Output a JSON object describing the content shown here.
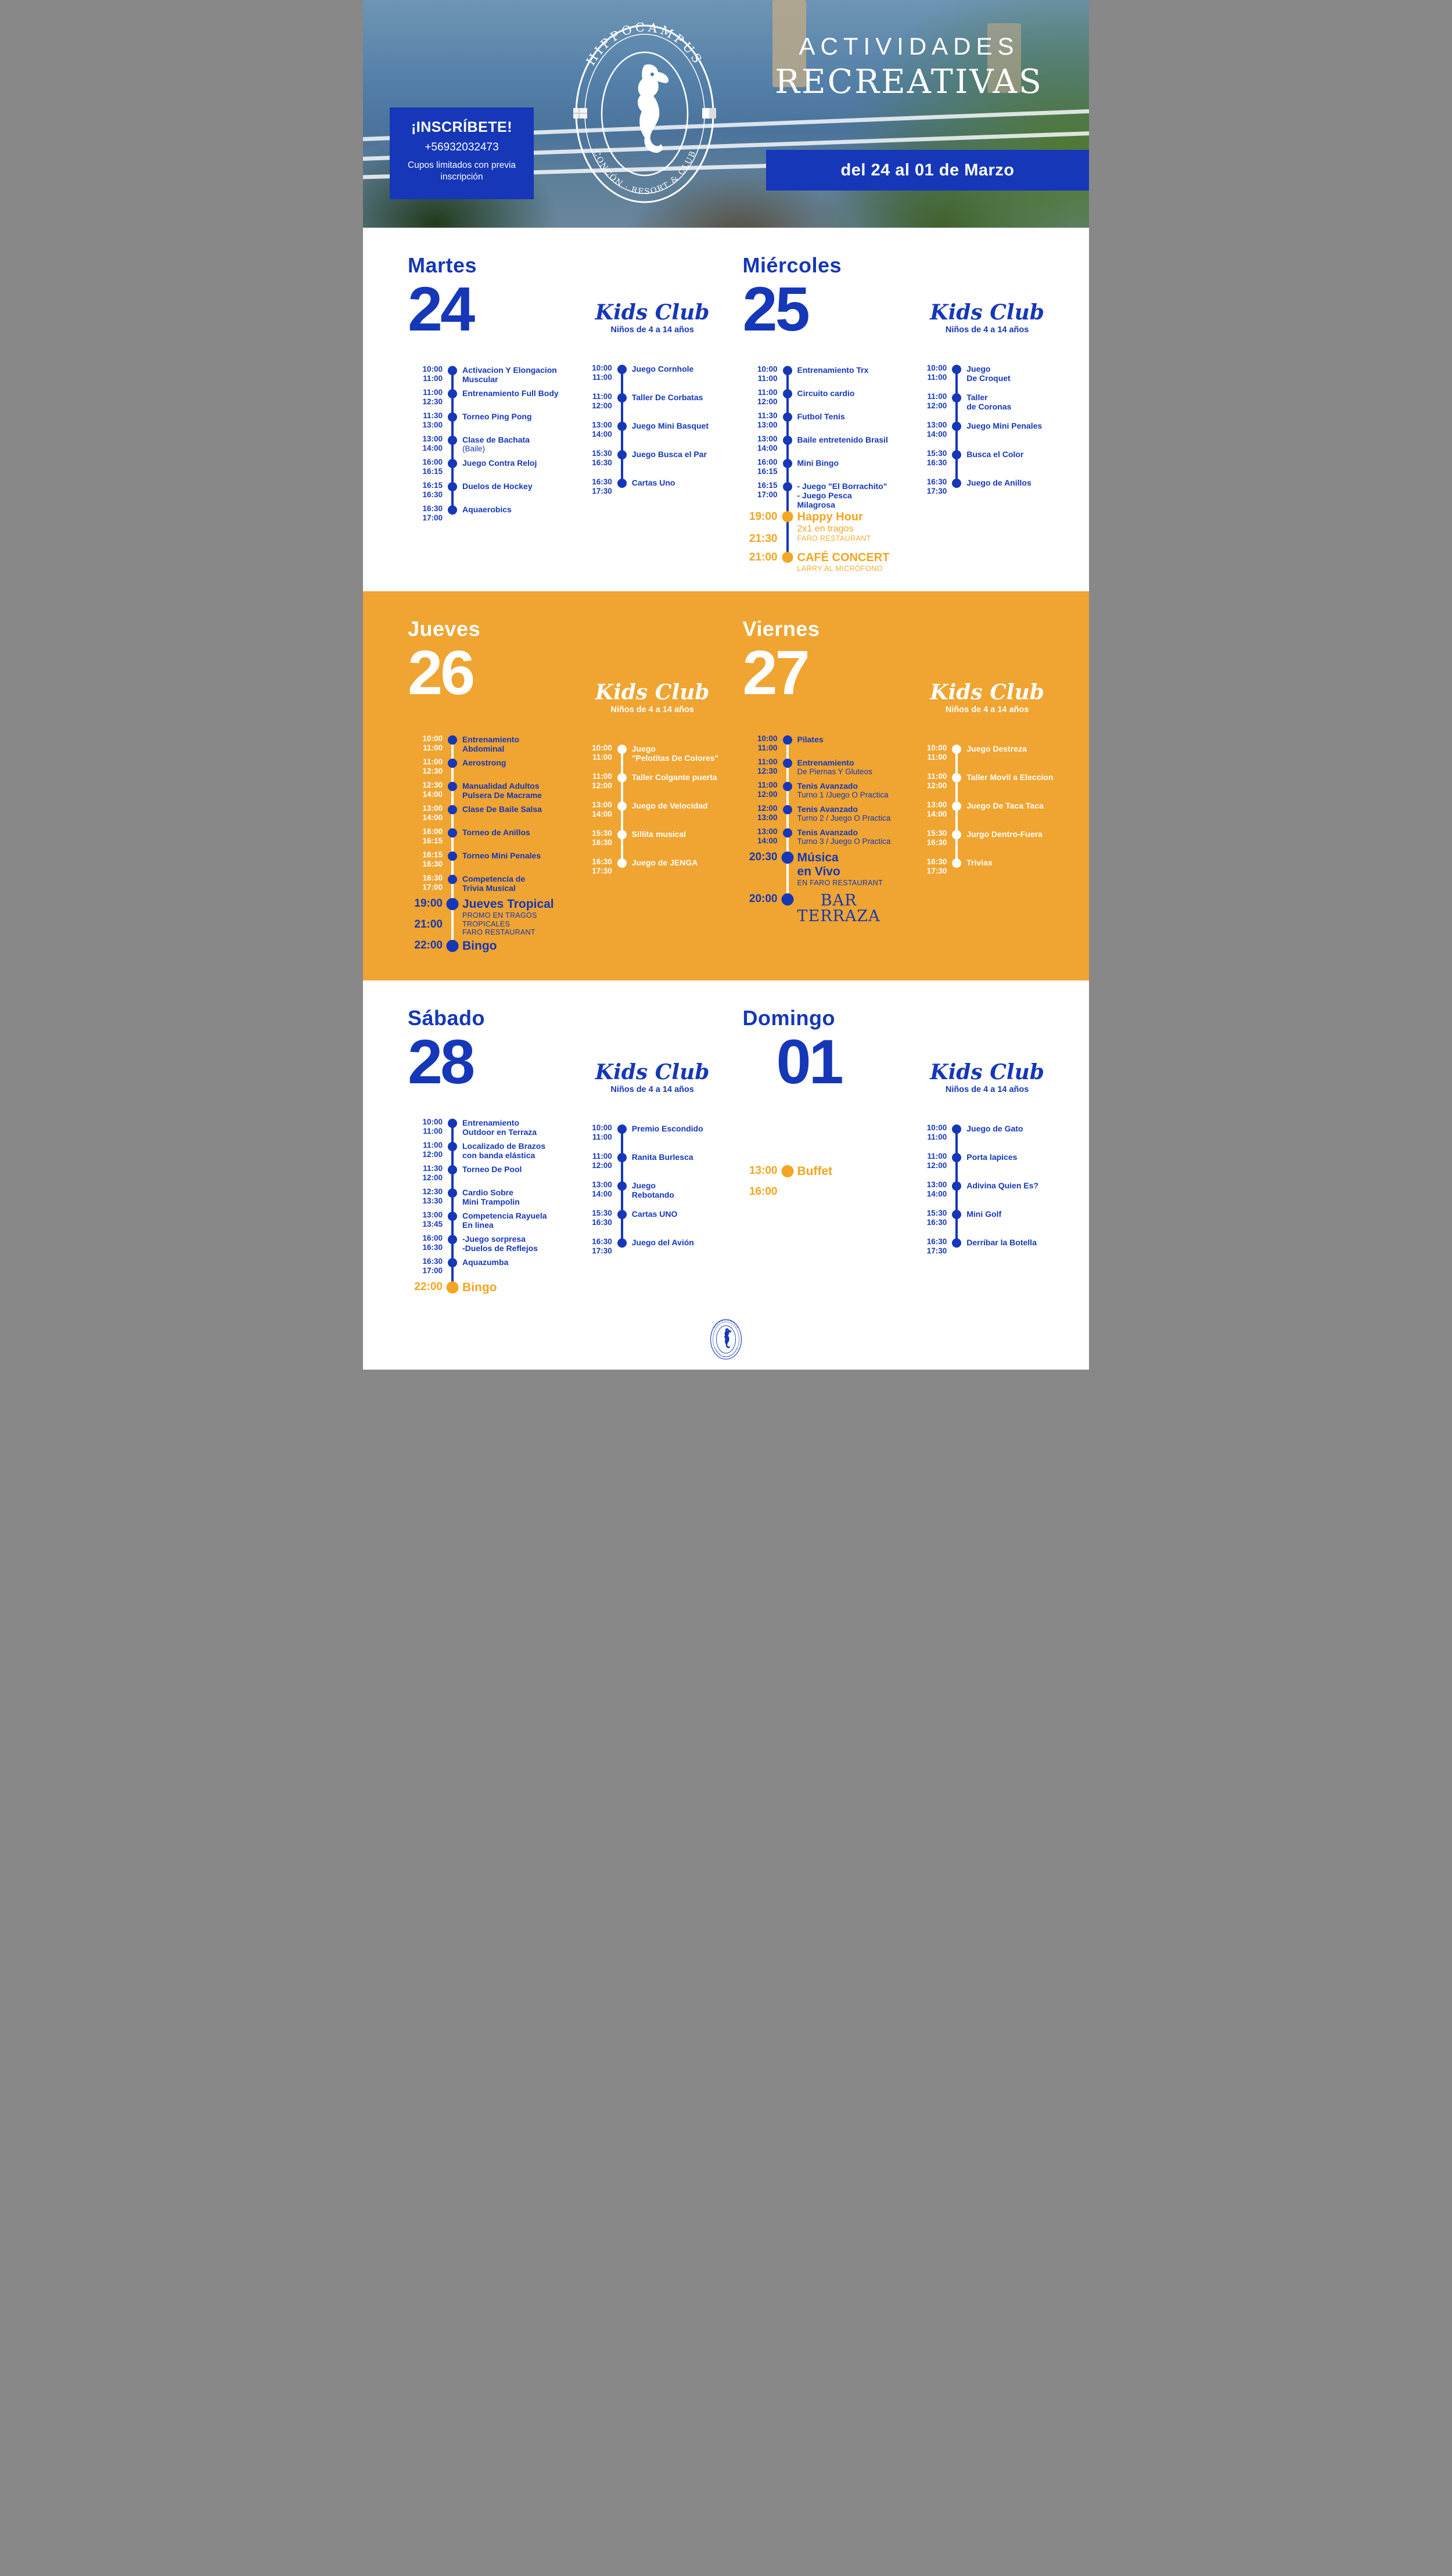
{
  "header": {
    "inscribete": {
      "title": "¡INSCRÍBETE!",
      "phone": "+56932032473",
      "note": "Cupos limitados con previa inscripción"
    },
    "logo": {
      "top": "HIPPOCAMPUS",
      "bottom": "CONCÓN · RESORT & CLUB"
    },
    "title_line1": "ACTIVIDADES",
    "title_line2": "RECREATIVAS",
    "date_range": "del 24 al 01 de Marzo"
  },
  "kids_club": {
    "title": "Kids Club",
    "subtitle": "Niños de 4 a 14 años"
  },
  "colors": {
    "blue": "#1537b8",
    "orange_bg": "#f0a431",
    "accent_orange": "#f4a521",
    "white": "#ffffff"
  },
  "days": [
    {
      "id": "martes",
      "name": "Martes",
      "number": "24",
      "band": 0,
      "main": [
        {
          "start": "10:00",
          "end": "11:00",
          "title": "Activacion Y Elongacion Muscular"
        },
        {
          "start": "11:00",
          "end": "12:30",
          "title": "Entrenamiento Full Body"
        },
        {
          "start": "11:30",
          "end": "13:00",
          "title": "Torneo Ping Pong"
        },
        {
          "start": "13:00",
          "end": "14:00",
          "title": "Clase de Bachata",
          "sub": "(Baile)"
        },
        {
          "start": "16:00",
          "end": "16:15",
          "title": "Juego Contra Reloj"
        },
        {
          "start": "16:15",
          "end": "16:30",
          "title": "Duelos de Hockey"
        },
        {
          "start": "16:30",
          "end": "17:00",
          "title": "Aquaerobics"
        }
      ],
      "kids": [
        {
          "start": "10:00",
          "end": "11:00",
          "title": "Juego Cornhole"
        },
        {
          "start": "11:00",
          "end": "12:00",
          "title": "Taller De Corbatas"
        },
        {
          "start": "13:00",
          "end": "14:00",
          "title": "Juego Mini Basquet"
        },
        {
          "start": "15:30",
          "end": "16:30",
          "title": "Juego Busca el Par"
        },
        {
          "start": "16:30",
          "end": "17:30",
          "title": "Cartas Uno"
        }
      ]
    },
    {
      "id": "miercoles",
      "name": "Miércoles",
      "number": "25",
      "band": 0,
      "main": [
        {
          "start": "10:00",
          "end": "11:00",
          "title": "Entrenamiento Trx"
        },
        {
          "start": "11:00",
          "end": "12:00",
          "title": "Circuito cardio"
        },
        {
          "start": "11:30",
          "end": "13:00",
          "title": "Futbol Tenis"
        },
        {
          "start": "13:00",
          "end": "14:00",
          "title": "Baile entretenido Brasil"
        },
        {
          "start": "16:00",
          "end": "16:15",
          "title": "Mini Bingo"
        },
        {
          "start": "16:15",
          "end": "17:00",
          "title": "- Juego \"El Borrachito\"\n- Juego Pesca\nMilagrosa"
        },
        {
          "start": "19:00",
          "end": "21:30",
          "title": "Happy Hour",
          "sub": "2x1 en tragos",
          "sub2": "FARO RESTAURANT",
          "style": "accent"
        },
        {
          "start": "21:00",
          "title": "CAFÉ CONCERT",
          "sub2": "LARRY AL MICRÓFONO",
          "style": "accent"
        }
      ],
      "kids": [
        {
          "start": "10:00",
          "end": "11:00",
          "title": "Juego\nDe Croquet"
        },
        {
          "start": "11:00",
          "end": "12:00",
          "title": "Taller\nde Coronas"
        },
        {
          "start": "13:00",
          "end": "14:00",
          "title": "Juego Mini Penales"
        },
        {
          "start": "15:30",
          "end": "16:30",
          "title": "Busca el Color"
        },
        {
          "start": "16:30",
          "end": "17:30",
          "title": "Juego de Anillos"
        }
      ]
    },
    {
      "id": "jueves",
      "name": "Jueves",
      "number": "26",
      "band": 1,
      "main": [
        {
          "start": "10:00",
          "end": "11:00",
          "title": "Entrenamiento\nAbdominal"
        },
        {
          "start": "11:00",
          "end": "12:30",
          "title": "Aerostrong"
        },
        {
          "start": "12:30",
          "end": "14:00",
          "title": "Manualidad Adultos\nPulsera De Macrame"
        },
        {
          "start": "13:00",
          "end": "14:00",
          "title": "Clase De Baile Salsa"
        },
        {
          "start": "16:00",
          "end": "16:15",
          "title": "Torneo de Anillos"
        },
        {
          "start": "16:15",
          "end": "16:30",
          "title": "Torneo Mini Penales"
        },
        {
          "start": "16:30",
          "end": "17:00",
          "title": "Competencia de\nTrivia Musical"
        },
        {
          "start": "19:00",
          "end": "21:00",
          "title": "Jueves Tropical",
          "sub": "PROMO EN TRAGOS TROPICALES",
          "sub2": "FARO RESTAURANT",
          "style": "feature"
        },
        {
          "start": "22:00",
          "title": "Bingo",
          "style": "feature"
        }
      ],
      "kids": [
        {
          "start": "10:00",
          "end": "11:00",
          "title": "Juego\n\"Pelotitas De Colores\""
        },
        {
          "start": "11:00",
          "end": "12:00",
          "title": "Taller Colgante puerta"
        },
        {
          "start": "13:00",
          "end": "14:00",
          "title": "Juego de Velocidad"
        },
        {
          "start": "15:30",
          "end": "16:30",
          "title": "Sillita musical"
        },
        {
          "start": "16:30",
          "end": "17:30",
          "title": "Juego de JENGA"
        }
      ]
    },
    {
      "id": "viernes",
      "name": "Viernes",
      "number": "27",
      "band": 1,
      "main": [
        {
          "start": "10:00",
          "end": "11:00",
          "title": "Pilates"
        },
        {
          "start": "11:00",
          "end": "12:30",
          "title": "Entrenamiento",
          "sub": "De Piernas Y Gluteos"
        },
        {
          "start": "11:00",
          "end": "12:00",
          "title": "Tenis Avanzado",
          "sub": "Turno 1 /Juego O Practica"
        },
        {
          "start": "12:00",
          "end": "13:00",
          "title": "Tenis Avanzado",
          "sub": "Turno 2 / Juego O Practica"
        },
        {
          "start": "13:00",
          "end": "14:00",
          "title": "Tenis Avanzado",
          "sub": "Turno 3 / Juego O Practica"
        },
        {
          "start": "20:30",
          "title": "Música\nen Vivo",
          "sub2": "EN FARO RESTAURANT",
          "style": "feature"
        },
        {
          "start": "20:00",
          "title": "BAR\nTERRAZA",
          "style": "terraza"
        }
      ],
      "kids": [
        {
          "start": "10:00",
          "end": "11:00",
          "title": "Juego Destreza"
        },
        {
          "start": "11:00",
          "end": "12:00",
          "title": "Taller Movil a Eleccion"
        },
        {
          "start": "13:00",
          "end": "14:00",
          "title": "Juego De Taca Taca"
        },
        {
          "start": "15:30",
          "end": "16:30",
          "title": "Jurgo Dentro-Fuera"
        },
        {
          "start": "16:30",
          "end": "17:30",
          "title": "Trivias"
        }
      ]
    },
    {
      "id": "sabado",
      "name": "Sábado",
      "number": "28",
      "band": 2,
      "main": [
        {
          "start": "10:00",
          "end": "11:00",
          "title": "Entrenamiento\nOutdoor en Terraza"
        },
        {
          "start": "11:00",
          "end": "12:00",
          "title": "Localizado de Brazos\ncon banda elástica"
        },
        {
          "start": "11:30",
          "end": "12:00",
          "title": "Torneo De Pool"
        },
        {
          "start": "12:30",
          "end": "13:30",
          "title": "Cardio Sobre\nMini Trampolin"
        },
        {
          "start": "13:00",
          "end": "13:45",
          "title": "Competencia Rayuela\nEn linea"
        },
        {
          "start": "16:00",
          "end": "16:30",
          "title": "-Juego sorpresa\n-Duelos de Reflejos"
        },
        {
          "start": "16:30",
          "end": "17:00",
          "title": "Aquazumba"
        },
        {
          "start": "22:00",
          "title": "Bingo",
          "style": "feature-orange"
        }
      ],
      "kids": [
        {
          "start": "10:00",
          "end": "11:00",
          "title": "Premio Escondido"
        },
        {
          "start": "11:00",
          "end": "12:00",
          "title": "Ranita Burlesca"
        },
        {
          "start": "13:00",
          "end": "14:00",
          "title": "Juego\nRebotando"
        },
        {
          "start": "15:30",
          "end": "16:30",
          "title": "Cartas UNO"
        },
        {
          "start": "16:30",
          "end": "17:30",
          "title": "Juego del Avión"
        }
      ]
    },
    {
      "id": "domingo",
      "name": "Domingo",
      "number": "01",
      "band": 2,
      "main": [
        {
          "start": "13:00",
          "end": "16:00",
          "title": "Buffet",
          "style": "feature-orange"
        }
      ],
      "kids": [
        {
          "start": "10:00",
          "end": "11:00",
          "title": "Juego de Gato"
        },
        {
          "start": "11:00",
          "end": "12:00",
          "title": "Porta lapices"
        },
        {
          "start": "13:00",
          "end": "14:00",
          "title": "Adivina Quien Es?"
        },
        {
          "start": "15:30",
          "end": "16:30",
          "title": "Mini Golf"
        },
        {
          "start": "16:30",
          "end": "17:30",
          "title": "Derribar la Botella"
        }
      ]
    }
  ]
}
